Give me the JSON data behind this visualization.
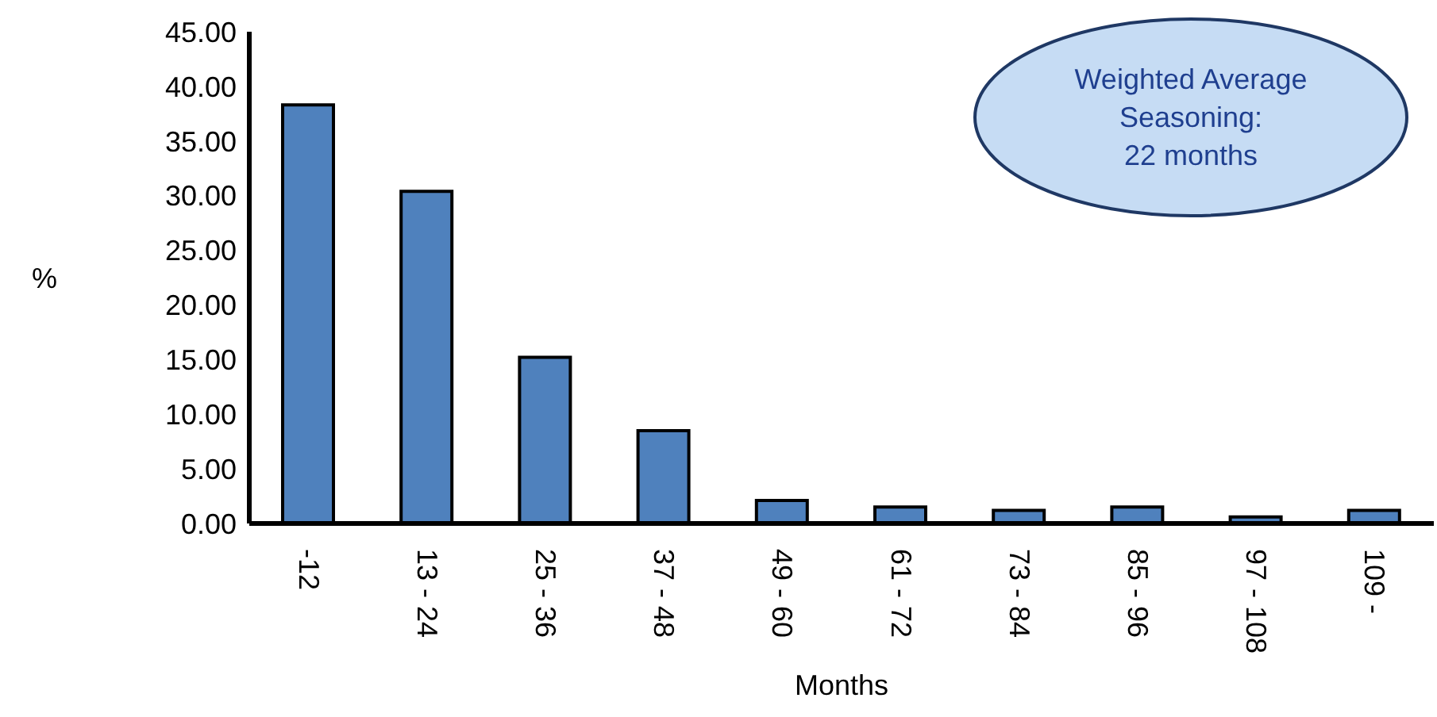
{
  "chart_data": {
    "type": "bar",
    "xlabel": "Months",
    "ylabel": "%",
    "categories": [
      "-12",
      "13 - 24",
      "25 - 36",
      "37 - 48",
      "49 - 60",
      "61 - 72",
      "73 - 84",
      "85 - 96",
      "97 - 108",
      "109 -"
    ],
    "values": [
      38.3,
      30.4,
      15.2,
      8.5,
      2.1,
      1.5,
      1.2,
      1.5,
      0.6,
      1.2
    ],
    "color": "#4f81bd",
    "ylim": [
      0,
      45
    ],
    "yticks": [
      {
        "value": 0,
        "label": "0.00"
      },
      {
        "value": 5,
        "label": "5.00"
      },
      {
        "value": 10,
        "label": "10.00"
      },
      {
        "value": 15,
        "label": "15.00"
      },
      {
        "value": 20,
        "label": "20.00"
      },
      {
        "value": 25,
        "label": "25.00"
      },
      {
        "value": 30,
        "label": "30.00"
      },
      {
        "value": 35,
        "label": "35.00"
      },
      {
        "value": 40,
        "label": "40.00"
      },
      {
        "value": 45,
        "label": "45.00"
      }
    ],
    "grid": false,
    "annotations": [
      "Weighted Average\nSeasoning:\n22 months"
    ]
  }
}
